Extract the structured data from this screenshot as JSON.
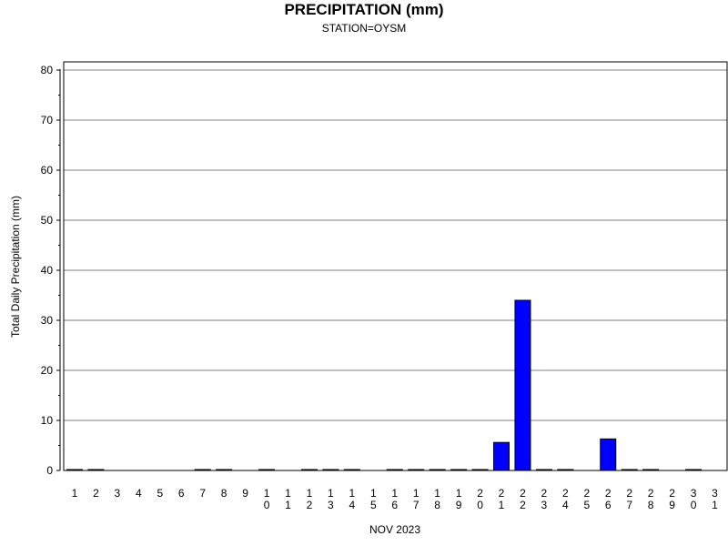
{
  "chart_data": {
    "type": "bar",
    "title": "PRECIPITATION (mm)",
    "subtitle": "STATION=OYSM",
    "xlabel": "NOV 2023",
    "ylabel": "Total Daily Precipitation (mm)",
    "ylim": [
      0,
      80
    ],
    "yticks": [
      0,
      10,
      20,
      30,
      40,
      50,
      60,
      70,
      80
    ],
    "grid": true,
    "bar_color": "#0000ff",
    "categories": [
      "1",
      "2",
      "3",
      "4",
      "5",
      "6",
      "7",
      "8",
      "9",
      "10",
      "11",
      "12",
      "13",
      "14",
      "15",
      "16",
      "17",
      "18",
      "19",
      "20",
      "21",
      "22",
      "23",
      "24",
      "25",
      "26",
      "27",
      "28",
      "29",
      "30",
      "31"
    ],
    "values": [
      0.1,
      0.1,
      null,
      null,
      null,
      null,
      0.1,
      0.1,
      null,
      0.1,
      null,
      0.1,
      0.1,
      0.1,
      null,
      0.1,
      0.1,
      0.1,
      0.1,
      0.1,
      5.6,
      34.0,
      0.1,
      0.1,
      null,
      6.3,
      0.1,
      0.1,
      null,
      0.1,
      null
    ]
  }
}
